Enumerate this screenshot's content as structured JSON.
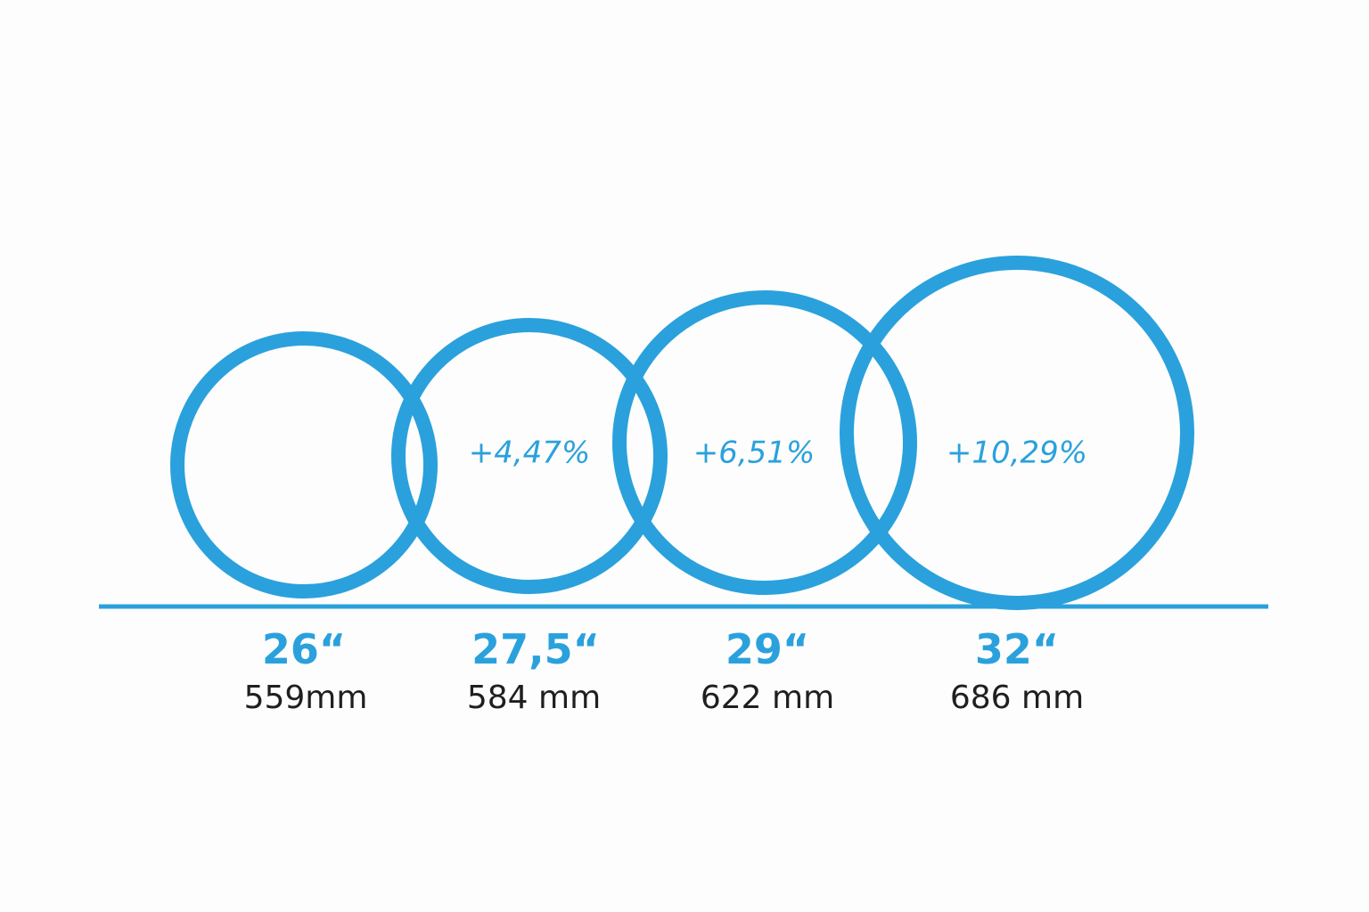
{
  "colors": {
    "accent": "#2aa1dc",
    "text": "#1f1f1f",
    "background": "#fdfdfd"
  },
  "wheels": [
    {
      "size": "26“",
      "diameter": "559mm",
      "increase": ""
    },
    {
      "size": "27,5“",
      "diameter": "584 mm",
      "increase": "+4,47%"
    },
    {
      "size": "29“",
      "diameter": "622 mm",
      "increase": "+6,51%"
    },
    {
      "size": "32“",
      "diameter": "686 mm",
      "increase": "+10,29%"
    }
  ]
}
